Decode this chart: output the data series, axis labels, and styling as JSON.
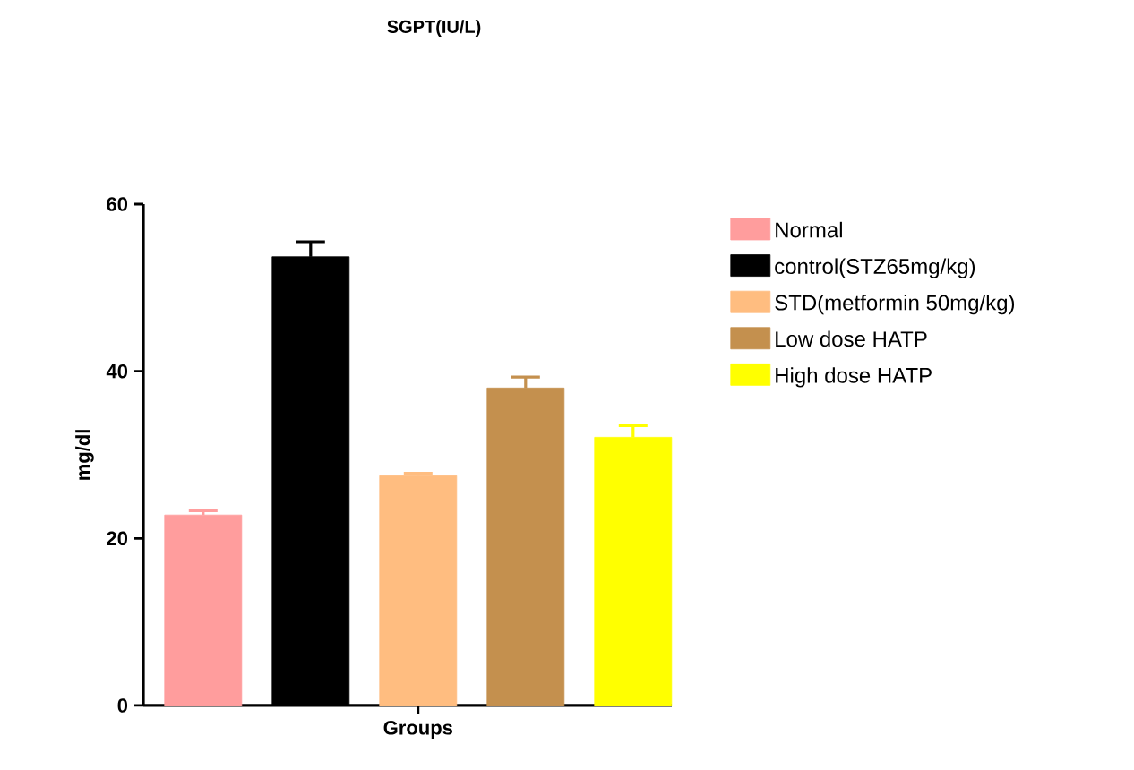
{
  "chart_data": {
    "type": "bar",
    "title": "SGPT(IU/L)",
    "ylabel": "mg/dl",
    "categories": [
      "Groups"
    ],
    "series": [
      {
        "name": "Normal",
        "color": "#ff9d9d",
        "values": [
          22.8
        ],
        "errors": [
          0.5
        ]
      },
      {
        "name": "control(STZ65mg/kg)",
        "color": "#000000",
        "values": [
          53.7
        ],
        "errors": [
          1.8
        ]
      },
      {
        "name": "STD(metformin 50mg/kg)",
        "color": "#ffbd80",
        "values": [
          27.5
        ],
        "errors": [
          0.3
        ]
      },
      {
        "name": "Low dose HATP",
        "color": "#c4904e",
        "values": [
          38.0
        ],
        "errors": [
          1.3
        ]
      },
      {
        "name": "High dose HATP",
        "color": "#ffff00",
        "values": [
          32.1
        ],
        "errors": [
          1.4
        ]
      }
    ],
    "ylim": [
      0,
      60
    ],
    "yticks": [
      0,
      20,
      40,
      60
    ],
    "grid": false,
    "legend": "right"
  }
}
